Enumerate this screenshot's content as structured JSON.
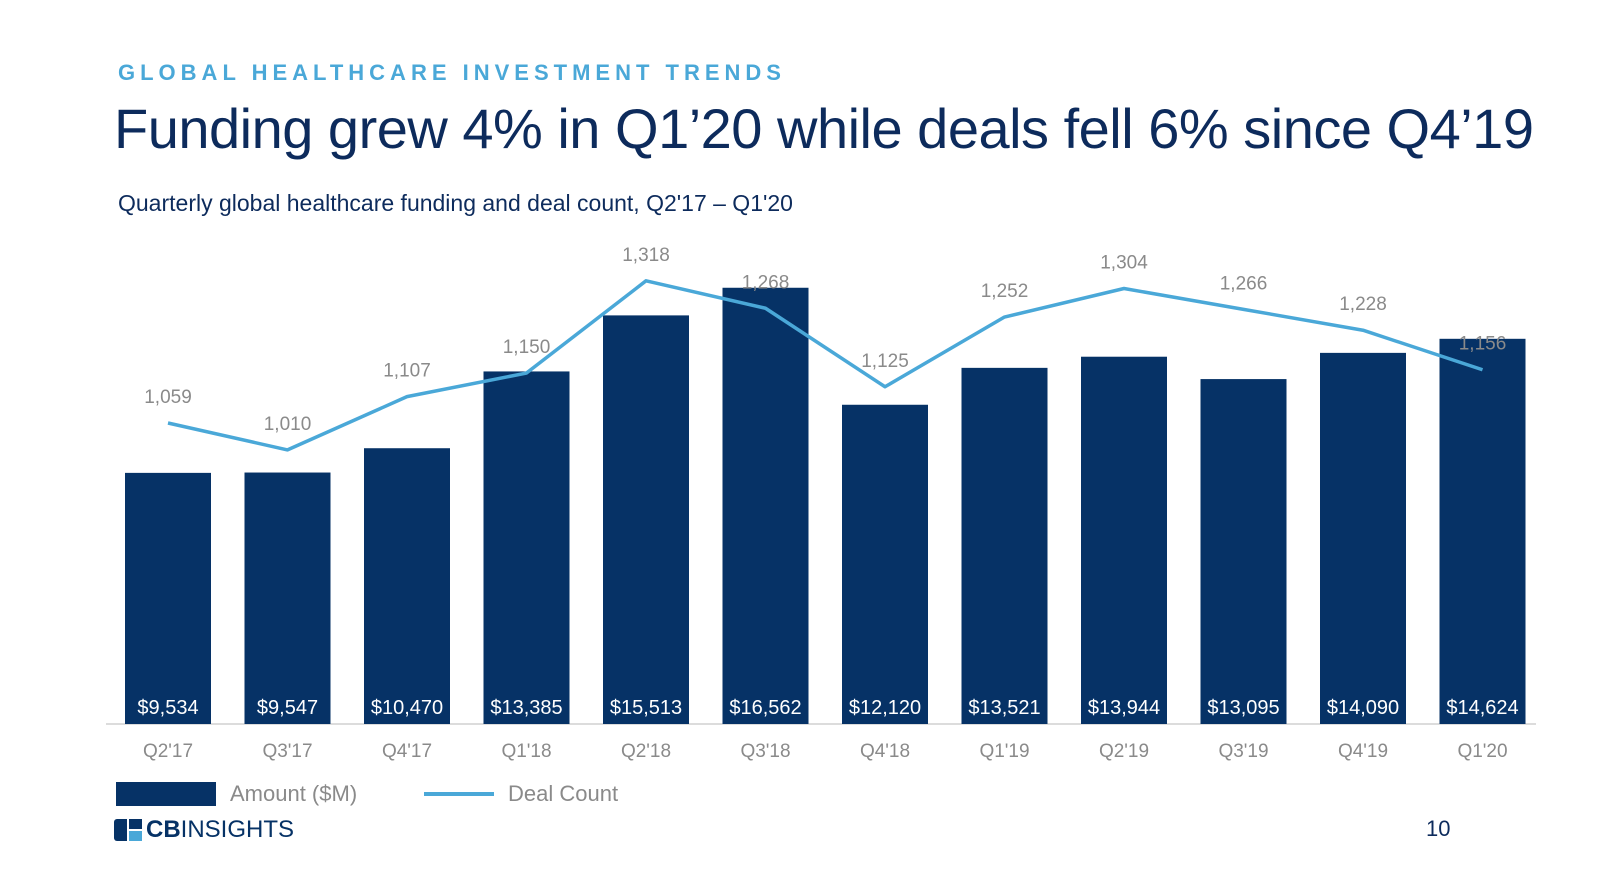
{
  "header": {
    "eyebrow": "GLOBAL HEALTHCARE INVESTMENT TRENDS",
    "title": "Funding grew 4% in Q1’20 while deals fell 6% since Q4’19",
    "subtitle": "Quarterly global healthcare funding and deal count, Q2'17 – Q1'20"
  },
  "chart_data": {
    "type": "bar",
    "categories": [
      "Q2'17",
      "Q3'17",
      "Q4'17",
      "Q1'18",
      "Q2'18",
      "Q3'18",
      "Q4'18",
      "Q1'19",
      "Q2'19",
      "Q3'19",
      "Q4'19",
      "Q1'20"
    ],
    "series": [
      {
        "name": "Amount ($M)",
        "type": "bar",
        "values": [
          9534,
          9547,
          10470,
          13385,
          15513,
          16562,
          12120,
          13521,
          13944,
          13095,
          14090,
          14624
        ],
        "labels": [
          "$9,534",
          "$9,547",
          "$10,470",
          "$13,385",
          "$15,513",
          "$16,562",
          "$12,120",
          "$13,521",
          "$13,944",
          "$13,095",
          "$14,090",
          "$14,624"
        ],
        "color": "#063266"
      },
      {
        "name": "Deal Count",
        "type": "line",
        "values": [
          1059,
          1010,
          1107,
          1150,
          1318,
          1268,
          1125,
          1252,
          1304,
          1266,
          1228,
          1156
        ],
        "labels": [
          "1,059",
          "1,010",
          "1,107",
          "1,150",
          "1,318",
          "1,268",
          "1,125",
          "1,252",
          "1,304",
          "1,266",
          "1,228",
          "1,156"
        ],
        "color": "#4aa8d8"
      }
    ],
    "legend_position": "bottom-left",
    "grid": false
  },
  "legend": {
    "amount_label": "Amount ($M)",
    "deals_label": "Deal Count"
  },
  "footer": {
    "logo_text_bold": "CB",
    "logo_text": "INSIGHTS",
    "page_number": "10"
  },
  "colors": {
    "bar": "#063266",
    "line": "#4aa8d8",
    "title": "#0d2b5c",
    "eyebrow": "#4aa8d8",
    "axis_text": "#8a8a8a"
  }
}
